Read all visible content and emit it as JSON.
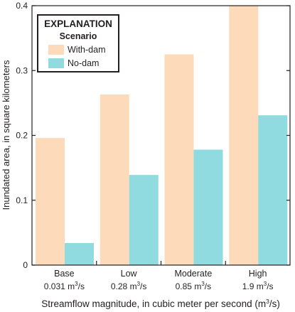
{
  "chart_data": {
    "type": "bar",
    "categories": [
      "Base",
      "Low",
      "Moderate",
      "High"
    ],
    "category_sublabels": [
      {
        "prefix": "0.031 m",
        "sup": "3",
        "suffix": "/s"
      },
      {
        "prefix": "0.28 m",
        "sup": "3",
        "suffix": "/s"
      },
      {
        "prefix": "0.85 m",
        "sup": "3",
        "suffix": "/s"
      },
      {
        "prefix": "1.9 m",
        "sup": "3",
        "suffix": "/s"
      }
    ],
    "series": [
      {
        "name": "With-dam",
        "color": "#fddbba",
        "values": [
          0.196,
          0.263,
          0.325,
          0.4
        ]
      },
      {
        "name": "No-dam",
        "color": "#8fdbe0",
        "values": [
          0.034,
          0.139,
          0.178,
          0.231
        ]
      }
    ],
    "xlabel": {
      "prefix": "Streamflow magnitude, in cubic meter per second (m",
      "sup": "3",
      "suffix": "/s)"
    },
    "ylabel": "Inundated area, in square kilometers",
    "ylim": [
      0,
      0.4
    ],
    "yticks": [
      0,
      0.1,
      0.2,
      0.3,
      0.4
    ],
    "ytick_labels": [
      "0",
      "0.1",
      "0.2",
      "0.3",
      "0.4"
    ],
    "grid": false,
    "legend": {
      "title": "EXPLANATION",
      "subtitle": "Scenario",
      "placement": "top-left"
    }
  }
}
